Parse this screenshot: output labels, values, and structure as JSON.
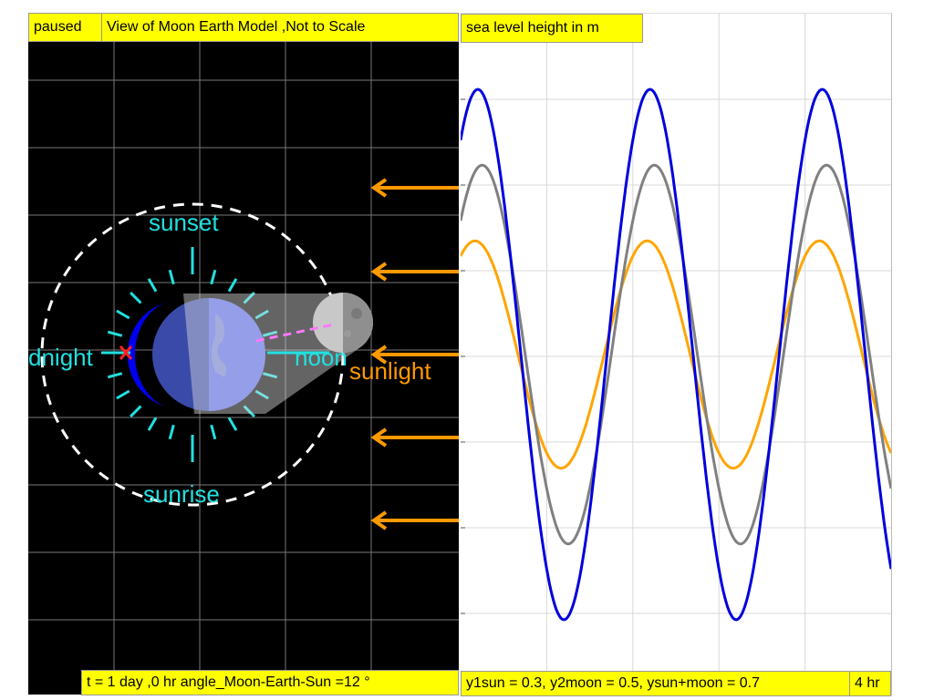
{
  "status_label": "paused",
  "left_title": "View of Moon Earth Model ,Not to Scale",
  "right_title": "sea level height in m",
  "left_footer": "t = 1 day ,0 hr angle_Moon-Earth-Sun =12 °",
  "right_footer": "y1sun = 0.3, y2moon = 0.5, ysun+moon = 0.7",
  "right_footer_unit": "4 hr",
  "labels": {
    "sunset": "sunset",
    "sunrise": "sunrise",
    "midnight": "dnight",
    "noon": "noon",
    "sunlight": "sunlight"
  },
  "colors": {
    "panel_bg": "#000000",
    "box_bg": "#ffff00",
    "cyan": "#22e0e0",
    "sun_arrow": "#ff9900",
    "sun_curve": "#ffa500",
    "moon_curve": "#808080",
    "sum_curve": "#0000dd"
  },
  "chart_data": {
    "type": "line",
    "title": "sea level height in m",
    "xlabel": "",
    "ylabel": "",
    "x_range_hours": [
      0,
      30
    ],
    "ylim": [
      -0.9,
      0.9
    ],
    "grid": true,
    "series": [
      {
        "name": "y1sun",
        "amplitude": 0.3,
        "period_hours": 12,
        "phase_hours": -1,
        "color": "#ffa500"
      },
      {
        "name": "y2moon",
        "amplitude": 0.5,
        "period_hours": 12,
        "phase_hours": -1.5,
        "color": "#808080"
      },
      {
        "name": "ysun+moon",
        "amplitude": 0.7,
        "period_hours": 12,
        "phase_hours": -1.2,
        "color": "#0000dd"
      }
    ]
  }
}
